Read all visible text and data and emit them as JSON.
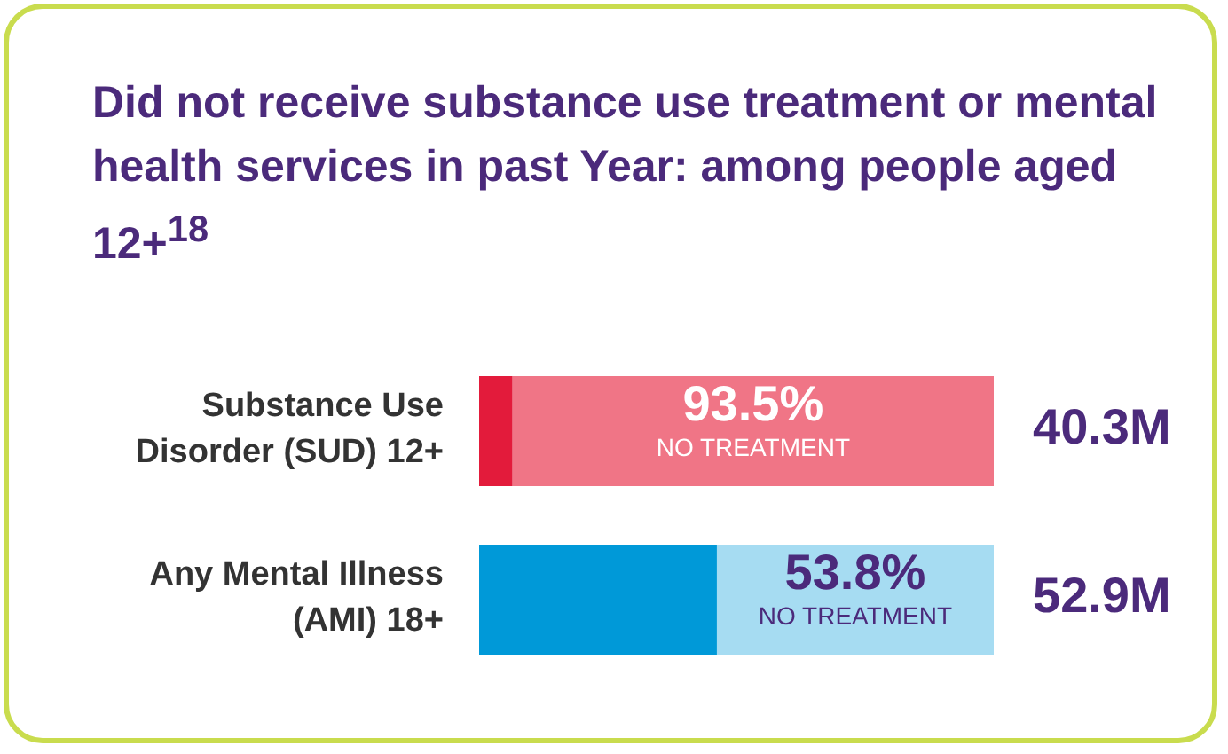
{
  "chart_data": {
    "type": "bar",
    "orientation": "horizontal",
    "stacked": true,
    "title": "Did not receive substance use treatment or mental health services in past Year: among people aged 12+$^{18}$",
    "categories": [
      "Substance Use Disorder (SUD) 12+",
      "Any Mental Illness (AMI) 18+"
    ],
    "series": [
      {
        "colors": [
          "#e31b3b",
          "#0099d8"
        ],
        "values": [
          6.5,
          46.2
        ]
      },
      {
        "colors": [
          "#f07586",
          "#a6dcf2"
        ],
        "values": [
          93.5,
          53.8
        ],
        "value_labels": [
          "93.5%\nNO TREATMENT",
          "53.8%\nNO TREATMENT"
        ]
      }
    ],
    "xlim": [
      0,
      100
    ],
    "tick_labels": "y",
    "grid": false,
    "annotations": [
      {
        "text": "40.3M",
        "x": 100,
        "y": "Substance Use Disorder (SUD) 12+"
      },
      {
        "text": "52.9M",
        "x": 100,
        "y": "Any Mental Illness (AMI) 18+"
      }
    ]
  }
}
